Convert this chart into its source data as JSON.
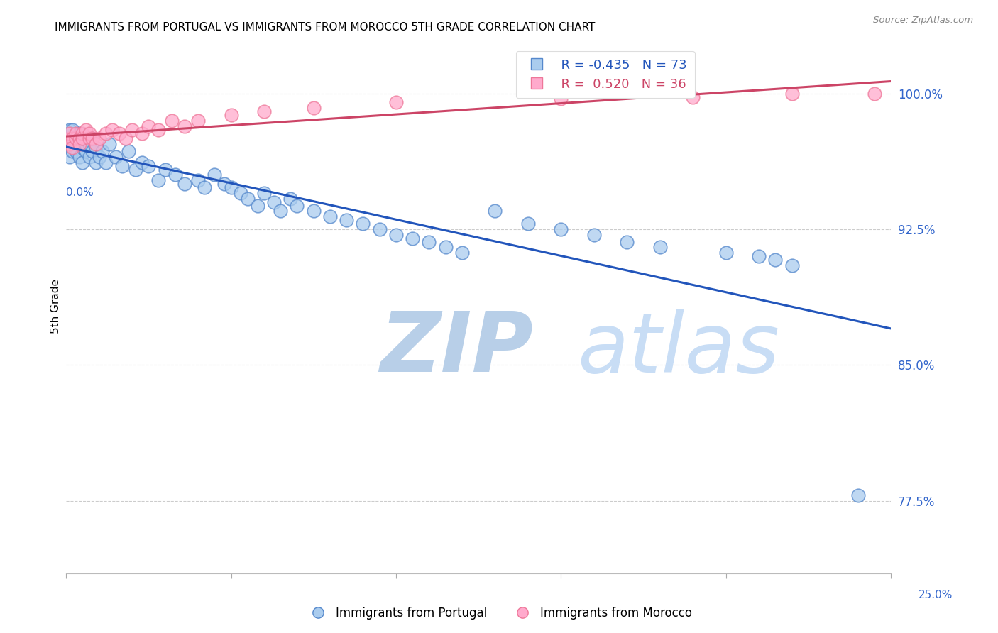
{
  "title": "IMMIGRANTS FROM PORTUGAL VS IMMIGRANTS FROM MOROCCO 5TH GRADE CORRELATION CHART",
  "source": "Source: ZipAtlas.com",
  "ylabel": "5th Grade",
  "yticks": [
    0.775,
    0.85,
    0.925,
    1.0
  ],
  "ytick_labels": [
    "77.5%",
    "85.0%",
    "92.5%",
    "100.0%"
  ],
  "xlim": [
    0.0,
    0.25
  ],
  "ylim": [
    0.735,
    1.03
  ],
  "blue_line_color": "#2255bb",
  "pink_line_color": "#cc4466",
  "blue_fill": "#aaccee",
  "pink_fill": "#ffaacc",
  "blue_edge": "#5588cc",
  "pink_edge": "#ee7799",
  "legend_r1": "R = -0.435",
  "legend_n1": "N = 73",
  "legend_r2": "R =  0.520",
  "legend_n2": "N = 36",
  "legend_label1": "Immigrants from Portugal",
  "legend_label2": "Immigrants from Morocco",
  "watermark_zip": "ZIP",
  "watermark_atlas": "atlas",
  "watermark_color_zip": "#c8ddf0",
  "watermark_color_atlas": "#c8ddf0",
  "portugal_x": [
    0.001,
    0.001,
    0.001,
    0.001,
    0.002,
    0.002,
    0.002,
    0.002,
    0.003,
    0.003,
    0.003,
    0.004,
    0.004,
    0.004,
    0.005,
    0.005,
    0.005,
    0.006,
    0.006,
    0.007,
    0.007,
    0.008,
    0.008,
    0.009,
    0.009,
    0.01,
    0.011,
    0.012,
    0.013,
    0.015,
    0.017,
    0.019,
    0.021,
    0.023,
    0.025,
    0.028,
    0.03,
    0.033,
    0.036,
    0.04,
    0.042,
    0.045,
    0.048,
    0.05,
    0.053,
    0.055,
    0.058,
    0.06,
    0.063,
    0.065,
    0.068,
    0.07,
    0.075,
    0.08,
    0.085,
    0.09,
    0.095,
    0.1,
    0.105,
    0.11,
    0.115,
    0.12,
    0.13,
    0.14,
    0.15,
    0.16,
    0.17,
    0.18,
    0.2,
    0.21,
    0.215,
    0.22,
    0.24
  ],
  "portugal_y": [
    0.975,
    0.97,
    0.965,
    0.98,
    0.972,
    0.975,
    0.968,
    0.98,
    0.97,
    0.975,
    0.968,
    0.972,
    0.978,
    0.965,
    0.97,
    0.975,
    0.962,
    0.968,
    0.972,
    0.965,
    0.972,
    0.968,
    0.975,
    0.962,
    0.97,
    0.965,
    0.968,
    0.962,
    0.972,
    0.965,
    0.96,
    0.968,
    0.958,
    0.962,
    0.96,
    0.952,
    0.958,
    0.955,
    0.95,
    0.952,
    0.948,
    0.955,
    0.95,
    0.948,
    0.945,
    0.942,
    0.938,
    0.945,
    0.94,
    0.935,
    0.942,
    0.938,
    0.935,
    0.932,
    0.93,
    0.928,
    0.925,
    0.922,
    0.92,
    0.918,
    0.915,
    0.912,
    0.935,
    0.928,
    0.925,
    0.922,
    0.918,
    0.915,
    0.912,
    0.91,
    0.908,
    0.905,
    0.778
  ],
  "morocco_x": [
    0.001,
    0.001,
    0.001,
    0.002,
    0.002,
    0.003,
    0.003,
    0.004,
    0.004,
    0.005,
    0.005,
    0.006,
    0.007,
    0.007,
    0.008,
    0.009,
    0.01,
    0.012,
    0.014,
    0.016,
    0.018,
    0.02,
    0.023,
    0.025,
    0.028,
    0.032,
    0.036,
    0.04,
    0.05,
    0.06,
    0.075,
    0.1,
    0.15,
    0.19,
    0.22,
    0.245
  ],
  "morocco_y": [
    0.975,
    0.972,
    0.978,
    0.975,
    0.97,
    0.975,
    0.978,
    0.975,
    0.972,
    0.978,
    0.975,
    0.98,
    0.975,
    0.978,
    0.975,
    0.972,
    0.975,
    0.978,
    0.98,
    0.978,
    0.975,
    0.98,
    0.978,
    0.982,
    0.98,
    0.985,
    0.982,
    0.985,
    0.988,
    0.99,
    0.992,
    0.995,
    0.997,
    0.998,
    1.0,
    1.0
  ]
}
